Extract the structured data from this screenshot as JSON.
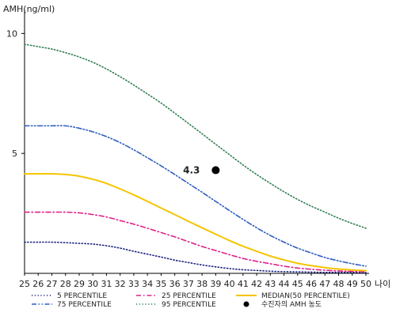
{
  "chart_data": {
    "type": "line",
    "ylabel": "AMH(ng/ml)",
    "xlabel": "나이",
    "xlim": [
      25,
      50
    ],
    "ylim": [
      0,
      11
    ],
    "x_ticks": [
      25,
      26,
      27,
      28,
      29,
      30,
      31,
      32,
      33,
      34,
      35,
      36,
      37,
      38,
      39,
      40,
      41,
      42,
      43,
      44,
      45,
      46,
      47,
      48,
      49,
      50
    ],
    "y_ticks": [
      5,
      10
    ],
    "x": [
      25,
      26,
      27,
      28,
      29,
      30,
      31,
      32,
      33,
      34,
      35,
      36,
      37,
      38,
      39,
      40,
      41,
      42,
      43,
      44,
      45,
      46,
      47,
      48,
      49,
      50
    ],
    "series": [
      {
        "name": "5 PERCENTILE",
        "color": "#1a237e",
        "dash": "dot",
        "values": [
          1.3,
          1.3,
          1.3,
          1.28,
          1.25,
          1.22,
          1.15,
          1.05,
          0.92,
          0.8,
          0.68,
          0.55,
          0.45,
          0.35,
          0.27,
          0.2,
          0.15,
          0.12,
          0.09,
          0.07,
          0.06,
          0.05,
          0.04,
          0.04,
          0.04,
          0.03
        ]
      },
      {
        "name": "25 PERCENTILE",
        "color": "#e0218a",
        "dash": "dashdot",
        "values": [
          2.55,
          2.55,
          2.55,
          2.55,
          2.52,
          2.45,
          2.35,
          2.2,
          2.05,
          1.88,
          1.7,
          1.52,
          1.32,
          1.12,
          0.95,
          0.78,
          0.62,
          0.5,
          0.4,
          0.3,
          0.22,
          0.17,
          0.13,
          0.1,
          0.08,
          0.06
        ]
      },
      {
        "name": "MEDIAN(50 PERCENTILE)",
        "color": "#f5c400",
        "dash": "solid",
        "values": [
          4.15,
          4.15,
          4.15,
          4.12,
          4.05,
          3.92,
          3.75,
          3.52,
          3.27,
          3.0,
          2.72,
          2.45,
          2.17,
          1.9,
          1.63,
          1.37,
          1.13,
          0.92,
          0.72,
          0.56,
          0.42,
          0.32,
          0.24,
          0.18,
          0.14,
          0.11
        ]
      },
      {
        "name": "75 PERCENTILE",
        "color": "#2f5fbf",
        "dash": "dashdotdot",
        "values": [
          6.15,
          6.15,
          6.15,
          6.15,
          6.05,
          5.9,
          5.7,
          5.45,
          5.15,
          4.82,
          4.48,
          4.12,
          3.75,
          3.38,
          3.0,
          2.62,
          2.25,
          1.9,
          1.58,
          1.3,
          1.05,
          0.85,
          0.66,
          0.52,
          0.4,
          0.3
        ]
      },
      {
        "name": "95 PERCENTILE",
        "color": "#2e7d4f",
        "dash": "dot",
        "values": [
          9.55,
          9.45,
          9.35,
          9.2,
          9.02,
          8.8,
          8.52,
          8.2,
          7.85,
          7.48,
          7.1,
          6.68,
          6.25,
          5.82,
          5.38,
          4.95,
          4.52,
          4.12,
          3.75,
          3.4,
          3.08,
          2.8,
          2.55,
          2.3,
          2.08,
          1.88
        ]
      }
    ],
    "patient": {
      "name": "수진자의 AMH 농도",
      "x": 39,
      "y": 4.3,
      "label": "4.3",
      "color": "#000000"
    },
    "legend_position": "bottom",
    "grid": false
  }
}
